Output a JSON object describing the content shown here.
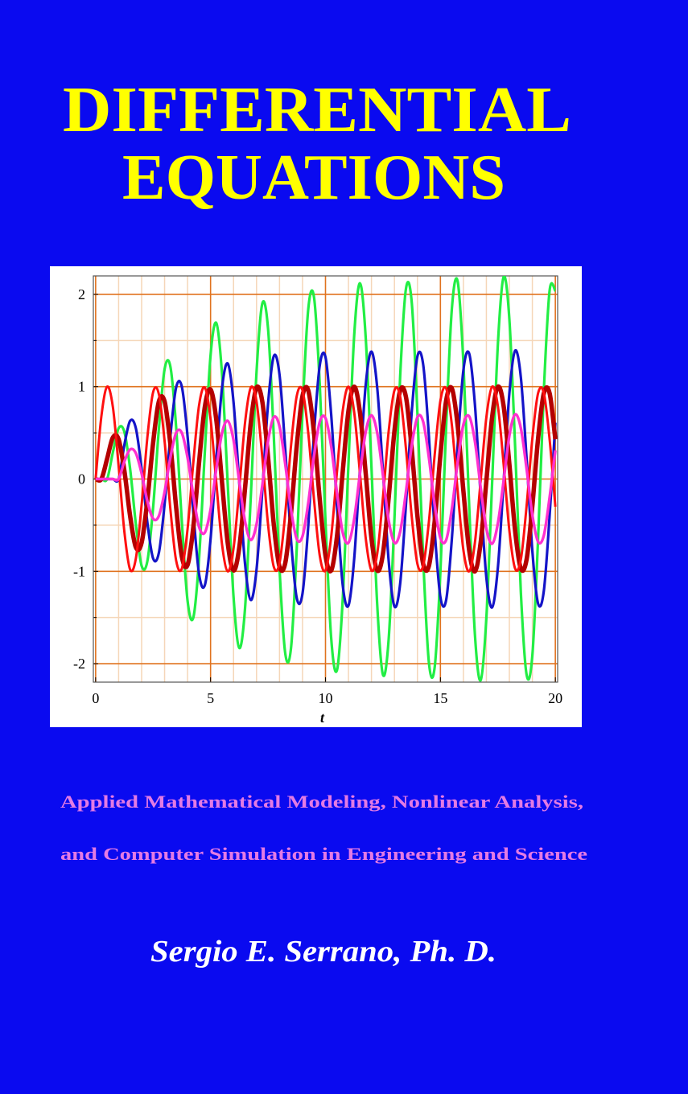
{
  "title_lines": [
    "DIFFERENTIAL",
    "EQUATIONS"
  ],
  "chart_data": {
    "type": "line",
    "x": [
      0,
      0.25,
      0.5,
      0.75,
      1,
      1.25,
      1.5,
      1.75,
      2,
      2.25,
      2.5,
      2.75,
      3,
      3.25,
      3.5,
      3.75,
      4,
      4.25,
      4.5,
      4.75,
      5,
      5.25,
      5.5,
      5.75,
      6,
      6.25,
      6.5,
      6.75,
      7,
      7.25,
      7.5,
      7.75,
      8,
      8.25,
      8.5,
      8.75,
      9,
      9.25,
      9.5,
      9.75,
      10,
      10.25,
      10.5,
      10.75,
      11,
      11.25,
      11.5,
      11.75,
      12,
      12.25,
      12.5,
      12.75,
      13,
      13.25,
      13.5,
      13.75,
      14,
      14.25,
      14.5,
      14.75,
      15,
      15.25,
      15.5,
      15.75,
      16,
      16.25,
      16.5,
      16.75,
      17,
      17.25,
      17.5,
      17.75,
      18,
      18.25,
      18.5,
      18.75,
      19,
      19.25,
      19.5,
      19.75,
      20
    ],
    "series": [
      {
        "color": "#22ee44",
        "values": [
          0,
          0,
          0,
          0.29,
          0.55,
          0.51,
          0.11,
          -0.49,
          -0.94,
          -0.89,
          -0.31,
          0.54,
          1.19,
          1.22,
          0.57,
          -0.46,
          -1.32,
          -1.5,
          -0.86,
          0.29,
          1.34,
          1.69,
          1.13,
          -0.07,
          -1.28,
          -1.83,
          -1.4,
          -0.19,
          1.16,
          1.9,
          1.63,
          0.47,
          -0.97,
          -1.89,
          -1.83,
          -0.75,
          0.73,
          1.84,
          1.97,
          1.03,
          -0.46,
          -1.73,
          -2.07,
          -1.3,
          0.17,
          1.56,
          2.12,
          1.53,
          0.13,
          -1.36,
          -2.12,
          -1.73,
          -0.43,
          1.12,
          2.06,
          1.92,
          0.71,
          -0.86,
          -1.99,
          -2.04,
          -1,
          0.57,
          1.85,
          2.14,
          1.26,
          -0.28,
          -1.68,
          -2.18,
          -1.5,
          -0.04,
          1.46,
          2.19,
          1.73,
          0.35,
          -1.23,
          -2.12,
          -1.91,
          -0.64,
          0.96,
          2.04,
          2.04
        ]
      },
      {
        "color": "#1414c8",
        "values": [
          0,
          0,
          0,
          0,
          0,
          0.37,
          0.63,
          0.55,
          0.11,
          -0.47,
          -0.86,
          -0.8,
          -0.27,
          0.46,
          0.99,
          1,
          0.46,
          -0.36,
          -1.03,
          -1.15,
          -0.65,
          0.22,
          0.99,
          1.25,
          0.83,
          -0.05,
          -0.92,
          -1.31,
          -0.98,
          -0.13,
          0.81,
          1.33,
          1.13,
          0.32,
          -0.66,
          -1.29,
          -1.24,
          -0.51,
          0.49,
          1.23,
          1.32,
          0.69,
          -0.3,
          -1.15,
          -1.37,
          -0.86,
          0.11,
          1.02,
          1.38,
          0.99,
          0.08,
          -0.89,
          -1.38,
          -1.13,
          -0.28,
          0.72,
          1.33,
          1.24,
          0.46,
          -0.56,
          -1.28,
          -1.31,
          -0.64,
          0.36,
          1.18,
          1.36,
          0.81,
          -0.18,
          -1.07,
          -1.39,
          -0.96,
          -0.03,
          0.93,
          1.39,
          1.1,
          0.22,
          -0.78,
          -1.35,
          -1.21,
          -0.4,
          0.61
        ]
      },
      {
        "color": "#b40000",
        "values": [
          0,
          0,
          0.22,
          0.45,
          0.43,
          0.09,
          -0.4,
          -0.74,
          -0.69,
          -0.23,
          0.39,
          0.84,
          0.84,
          0.38,
          -0.3,
          -0.84,
          -0.93,
          -0.52,
          0.18,
          0.78,
          0.97,
          0.64,
          -0.04,
          -0.7,
          -0.99,
          -0.74,
          -0.1,
          0.61,
          0.99,
          0.84,
          0.24,
          -0.49,
          -0.95,
          -0.91,
          -0.37,
          0.36,
          0.9,
          0.96,
          0.5,
          -0.22,
          -0.83,
          -0.99,
          -0.62,
          0.08,
          0.74,
          1,
          0.72,
          0.06,
          -0.64,
          -0.99,
          -0.81,
          -0.2,
          0.52,
          0.96,
          0.89,
          0.33,
          -0.4,
          -0.92,
          -0.94,
          -0.46,
          0.26,
          0.85,
          0.98,
          0.58,
          -0.13,
          -0.77,
          -1,
          -0.69,
          -0.02,
          0.67,
          1,
          0.79,
          0.16,
          -0.56,
          -0.97,
          -0.87,
          -0.29,
          0.44,
          0.93,
          0.93,
          0.43
        ]
      },
      {
        "color": "#ff1010",
        "values": [
          0,
          0.68,
          1,
          0.78,
          0.14,
          -0.57,
          -0.98,
          -0.86,
          -0.28,
          0.45,
          0.94,
          0.92,
          0.41,
          -0.32,
          -0.88,
          -0.97,
          -0.54,
          0.18,
          0.8,
          0.99,
          0.65,
          -0.04,
          -0.71,
          -1,
          -0.75,
          -0.1,
          0.61,
          0.99,
          0.84,
          0.24,
          -0.49,
          -0.95,
          -0.91,
          -0.37,
          0.36,
          0.9,
          0.96,
          0.5,
          -0.22,
          -0.83,
          -0.99,
          -0.62,
          0.08,
          0.74,
          1,
          0.72,
          0.06,
          -0.64,
          -0.99,
          -0.81,
          -0.2,
          0.52,
          0.96,
          0.89,
          0.33,
          -0.4,
          -0.92,
          -0.94,
          -0.46,
          0.26,
          0.85,
          0.98,
          0.58,
          -0.13,
          -0.77,
          -1,
          -0.69,
          -0.02,
          0.67,
          1,
          0.79,
          0.16,
          -0.56,
          -0.97,
          -0.87,
          -0.29,
          0.44,
          0.93,
          0.93,
          0.43,
          -0.3
        ]
      },
      {
        "color": "#ff30d0",
        "values": [
          0,
          0,
          0,
          0,
          0,
          0.19,
          0.32,
          0.28,
          0.06,
          -0.24,
          -0.43,
          -0.4,
          -0.14,
          0.23,
          0.5,
          0.5,
          0.23,
          -0.18,
          -0.52,
          -0.58,
          -0.33,
          0.11,
          0.5,
          0.63,
          0.42,
          -0.03,
          -0.46,
          -0.66,
          -0.49,
          -0.07,
          0.41,
          0.67,
          0.57,
          0.16,
          -0.33,
          -0.65,
          -0.62,
          -0.26,
          0.25,
          0.62,
          0.66,
          0.35,
          -0.15,
          -0.58,
          -0.69,
          -0.43,
          0.06,
          0.51,
          0.69,
          0.5,
          0.04,
          -0.45,
          -0.69,
          -0.57,
          -0.14,
          0.36,
          0.67,
          0.62,
          0.23,
          -0.28,
          -0.64,
          -0.66,
          -0.32,
          0.18,
          0.59,
          0.68,
          0.41,
          -0.09,
          -0.54,
          -0.7,
          -0.48,
          -0.02,
          0.47,
          0.7,
          0.55,
          0.11,
          -0.39,
          -0.68,
          -0.61,
          -0.2,
          0.31
        ]
      }
    ],
    "xlabel": "t",
    "xlim": [
      -0.1,
      20.1
    ],
    "ylim": [
      -2.2,
      2.2
    ],
    "xticks": [
      0,
      5,
      10,
      15,
      20
    ],
    "yticks": [
      -2,
      -1,
      0,
      1,
      2
    ],
    "minor_xticks": [
      1,
      2,
      3,
      4,
      6,
      7,
      8,
      9,
      11,
      12,
      13,
      14,
      16,
      17,
      18,
      19
    ],
    "minor_yticks": [
      -1.5,
      -0.5,
      0.5,
      1.5
    ],
    "grid": true
  },
  "subtitle_lines": [
    "Applied Mathematical Modeling, Nonlinear Analysis,",
    "and Computer Simulation in Engineering and Science"
  ],
  "author": "Sergio E. Serrano, Ph. D."
}
